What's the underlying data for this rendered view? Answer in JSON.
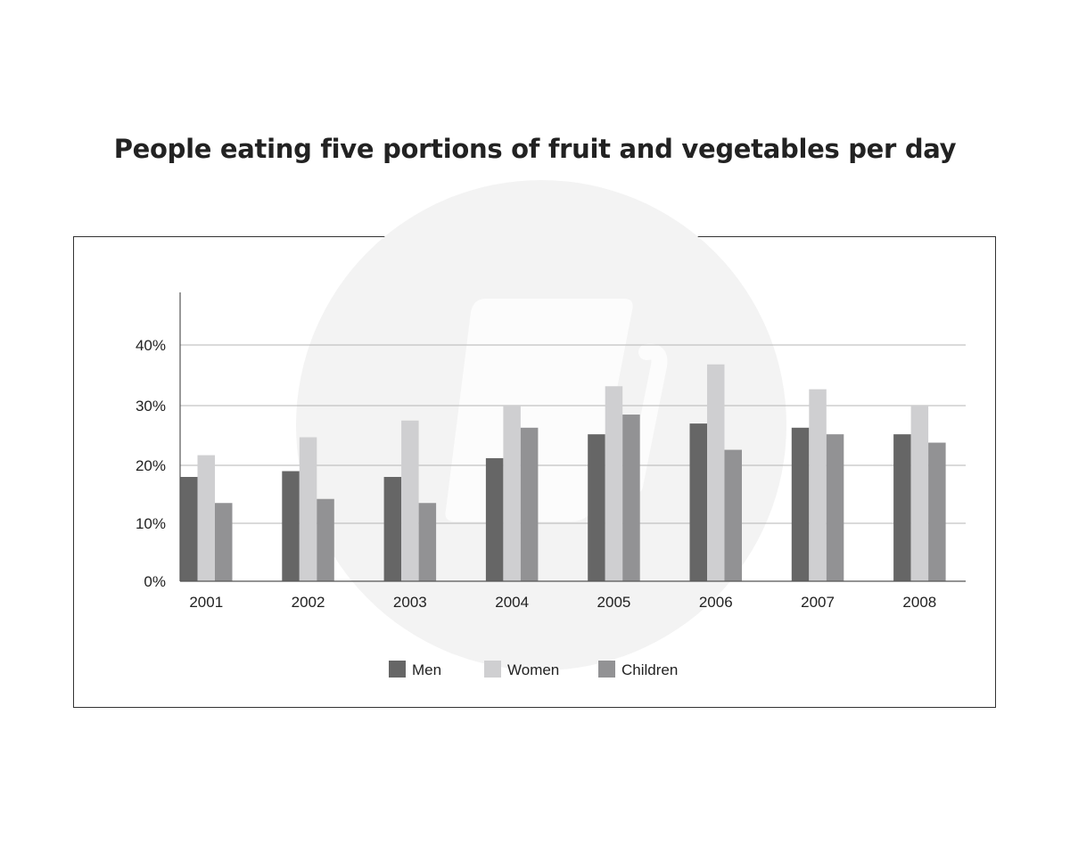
{
  "chart_data": {
    "type": "bar",
    "title": "People eating five portions of fruit and vegetables per day",
    "xlabel": "",
    "ylabel": "",
    "categories": [
      "2001",
      "2002",
      "2003",
      "2004",
      "2005",
      "2006",
      "2007",
      "2008"
    ],
    "series": [
      {
        "name": "Men",
        "color": "#666666",
        "values": [
          18,
          19,
          18,
          21.2,
          25.2,
          27,
          26.3,
          25.2
        ]
      },
      {
        "name": "Women",
        "color": "#cfcfd1",
        "values": [
          21.7,
          24.7,
          27.5,
          30,
          33.2,
          36.8,
          32.7,
          30
        ]
      },
      {
        "name": "Children",
        "color": "#929294",
        "values": [
          13.5,
          14.2,
          13.5,
          26.3,
          28.5,
          22.6,
          25.2,
          23.8
        ]
      }
    ],
    "yticks": [
      {
        "value": 0,
        "label": "0%"
      },
      {
        "value": 10,
        "label": "10%"
      },
      {
        "value": 20,
        "label": "20%"
      },
      {
        "value": 30,
        "label": "30%"
      },
      {
        "value": 40,
        "label": "40%"
      }
    ],
    "ylim": [
      0,
      45
    ],
    "grid": true,
    "legend_position": "bottom-center"
  }
}
